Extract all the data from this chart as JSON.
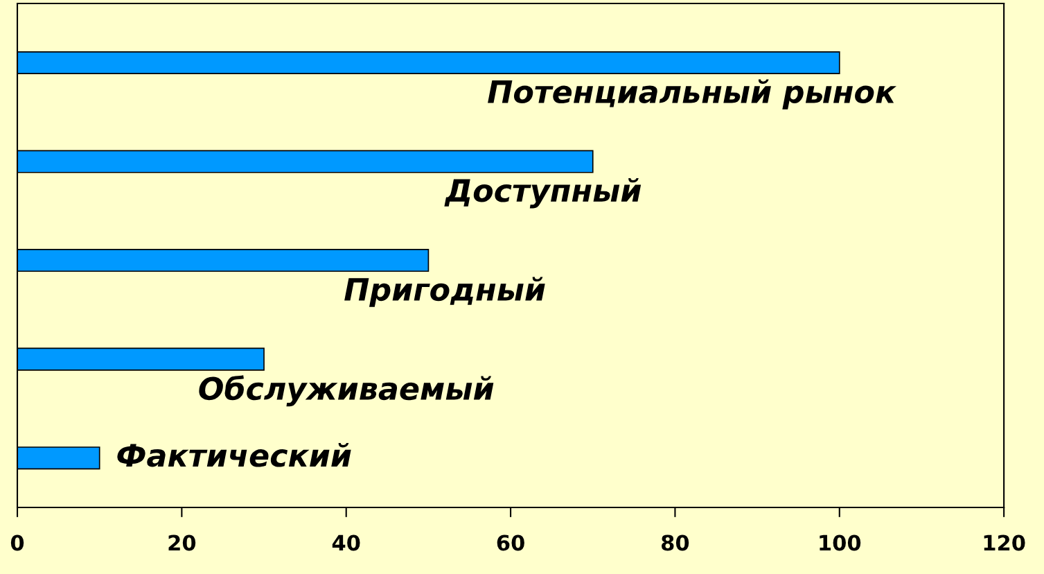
{
  "chart_data": {
    "type": "bar",
    "orientation": "horizontal",
    "categories": [
      "Потенциальный рынок",
      "Доступный",
      "Пригодный",
      "Обслуживаемый",
      "Фактический"
    ],
    "values": [
      100,
      70,
      50,
      30,
      10
    ],
    "color": "#0099ff",
    "xlim": [
      0,
      120
    ],
    "xticks": [
      0,
      20,
      40,
      60,
      80,
      100,
      120
    ],
    "tick_labels": "x",
    "grid": false,
    "legend": false
  }
}
